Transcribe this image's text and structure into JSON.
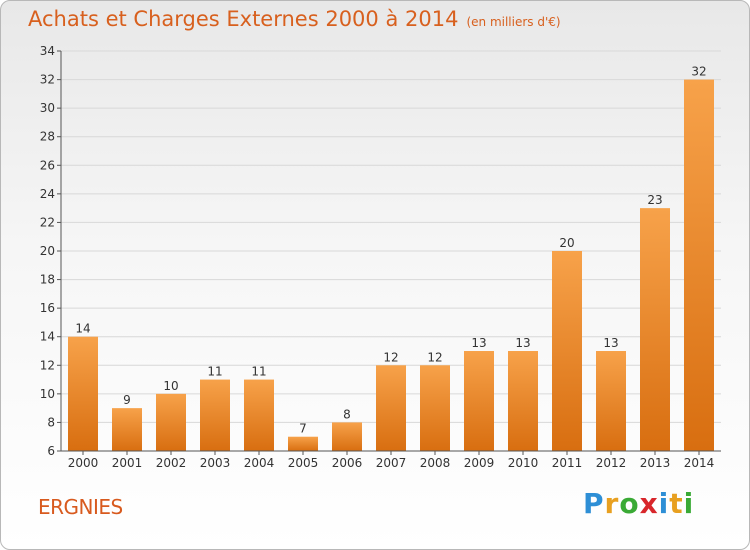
{
  "chart": {
    "title": "Achats et Charges Externes 2000 à 2014",
    "unit": "(en milliers d'€)"
  },
  "commune": "ERGNIES",
  "logo": {
    "text": "Proxiti",
    "letters": [
      {
        "ch": "P",
        "color": "#2e8fd6"
      },
      {
        "ch": "r",
        "color": "#e8a020"
      },
      {
        "ch": "o",
        "color": "#3aaa35"
      },
      {
        "ch": "x",
        "color": "#d8262b"
      },
      {
        "ch": "i",
        "color": "#2e8fd6"
      },
      {
        "ch": "t",
        "color": "#e8a020"
      },
      {
        "ch": "i",
        "color": "#3aaa35"
      }
    ]
  },
  "colors": {
    "bar_light": "#f7a24a",
    "bar_dark": "#d86e10",
    "title": "#d8601e"
  },
  "chart_data": {
    "type": "bar",
    "title": "Achats et Charges Externes 2000 à 2014",
    "subtitle": "(en milliers d'€)",
    "categories": [
      "2000",
      "2001",
      "2002",
      "2003",
      "2004",
      "2005",
      "2006",
      "2007",
      "2008",
      "2009",
      "2010",
      "2011",
      "2012",
      "2013",
      "2014"
    ],
    "values": [
      14,
      9,
      10,
      11,
      11,
      7,
      8,
      12,
      12,
      13,
      13,
      20,
      13,
      23,
      32
    ],
    "ylim": [
      6,
      34
    ],
    "yticks": [
      6,
      8,
      10,
      12,
      14,
      16,
      18,
      20,
      22,
      24,
      26,
      28,
      30,
      32,
      34
    ],
    "grid": true,
    "data_labels": true
  }
}
